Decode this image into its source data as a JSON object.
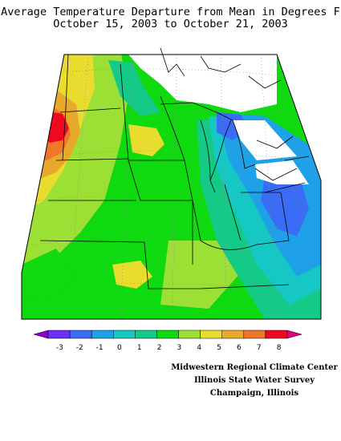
{
  "title": {
    "line1": "Average Temperature Departure from Mean in Degrees F",
    "line2": "October 15, 2003 to October 21, 2003"
  },
  "legend": {
    "ticks": [
      "-3",
      "-2",
      "-1",
      "0",
      "1",
      "2",
      "3",
      "4",
      "5",
      "6",
      "7",
      "8"
    ],
    "colors": [
      "#8d00c9",
      "#6e2ff5",
      "#3b6cf5",
      "#1fa1e8",
      "#16c8c3",
      "#15c986",
      "#0fd90f",
      "#9de035",
      "#e9dc2e",
      "#e8a92a",
      "#f0772a",
      "#ee0820",
      "#e5007a"
    ]
  },
  "credits": {
    "line1": "Midwestern Regional Climate Center",
    "line2": "Illinois State Water Survey",
    "line3": "Champaign, Illinois"
  }
}
